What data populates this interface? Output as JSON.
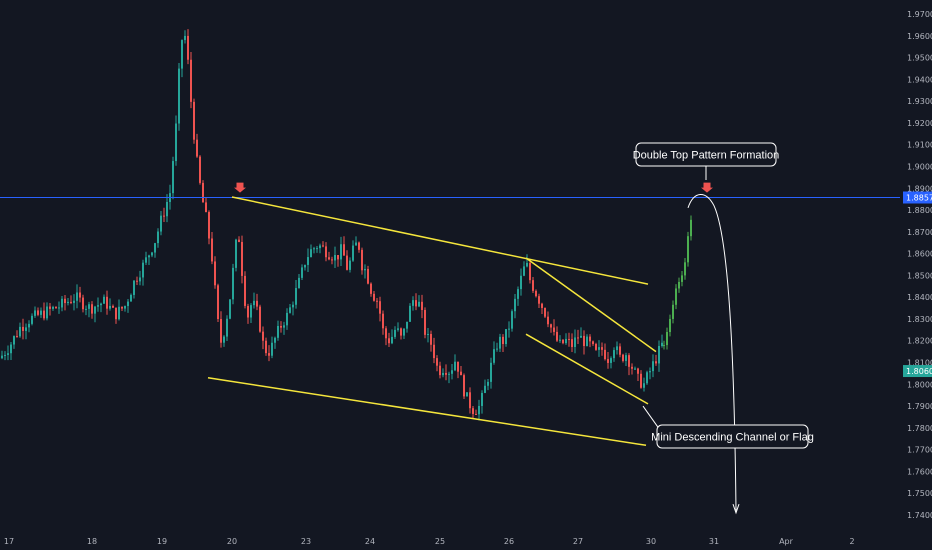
{
  "chart_data": {
    "type": "candlestick",
    "x_ticks": [
      "17",
      "18",
      "19",
      "20",
      "23",
      "24",
      "25",
      "26",
      "27",
      "30",
      "31",
      "Apr",
      "2"
    ],
    "y_ticks": [
      "1.97000",
      "1.96000",
      "1.95000",
      "1.94000",
      "1.93000",
      "1.92000",
      "1.91000",
      "1.90000",
      "1.89000",
      "1.88000",
      "1.87000",
      "1.86000",
      "1.85000",
      "1.84000",
      "1.83000",
      "1.82000",
      "1.81000",
      "1.80000",
      "1.79000",
      "1.78000",
      "1.77000",
      "1.76000",
      "1.75000",
      "1.74000"
    ],
    "ylim": [
      1.735,
      1.975
    ],
    "resistance_level": 1.88576,
    "resistance_label": "1.88576",
    "current_price": 1.80609,
    "current_price_label": "1.80609",
    "key_prices": [
      {
        "date": "17",
        "price": 1.815
      },
      {
        "date": "18",
        "price": 1.834
      },
      {
        "date": "19",
        "price": 1.962
      },
      {
        "date": "20",
        "price": 1.812
      },
      {
        "date": "20",
        "price": 1.88
      },
      {
        "date": "23",
        "price": 1.822
      },
      {
        "date": "24",
        "price": 1.868
      },
      {
        "date": "25",
        "price": 1.79
      },
      {
        "date": "26",
        "price": 1.856
      },
      {
        "date": "27",
        "price": 1.82
      },
      {
        "date": "30",
        "price": 1.799
      },
      {
        "date": "31",
        "price": 1.878
      }
    ],
    "annotations": [
      {
        "text": "Double Top Pattern Formation"
      },
      {
        "text": "Mini Descending Channel or Flag"
      }
    ],
    "colors": {
      "background": "#131722",
      "up": "#26a69a",
      "down": "#ef5350",
      "projection_up": "#4caf50",
      "trendline": "#f5e63c",
      "resistance": "#2962ff",
      "arrow": "#ef5350"
    }
  }
}
